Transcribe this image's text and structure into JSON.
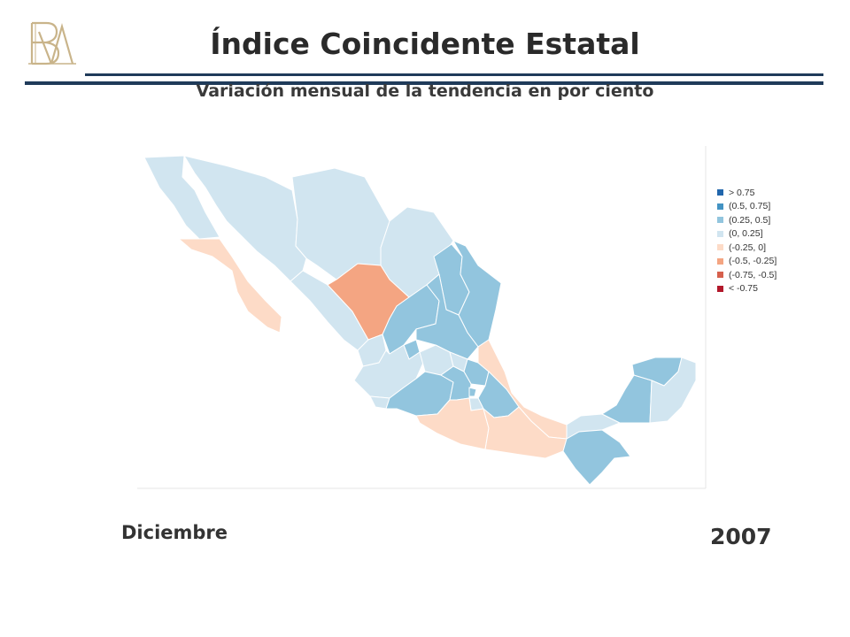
{
  "header": {
    "title": "Índice Coincidente Estatal",
    "subtitle": "Variación mensual de la tendencia en por ciento",
    "logo_icon": "banco-de-mexico-monogram-logo"
  },
  "legend": {
    "items": [
      {
        "label": "> 0.75",
        "color": "#2166ac"
      },
      {
        "label": "(0.5, 0.75]",
        "color": "#4393c3"
      },
      {
        "label": "(0.25, 0.5]",
        "color": "#92c5de"
      },
      {
        "label": "(0, 0.25]",
        "color": "#d1e5f0"
      },
      {
        "label": "(-0.25, 0]",
        "color": "#fddbc7"
      },
      {
        "label": "(-0.5, -0.25]",
        "color": "#f4a582"
      },
      {
        "label": "(-0.75, -0.5]",
        "color": "#d6604d"
      },
      {
        "label": "< -0.75",
        "color": "#b2182b"
      }
    ]
  },
  "footer": {
    "month": "Diciembre",
    "year": "2007"
  },
  "colors": {
    "rule_dark": "#1f3b5a",
    "logo_gold": "#c9b48a",
    "border": "#ffffff"
  }
}
